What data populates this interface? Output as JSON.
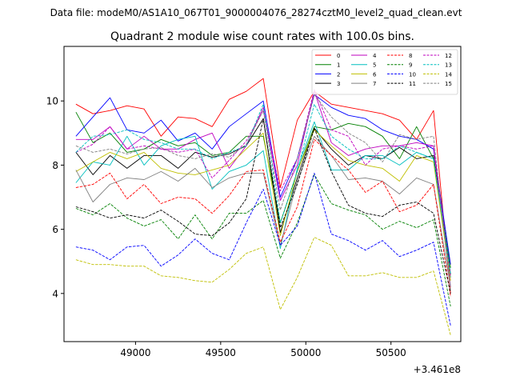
{
  "chart_data": {
    "type": "line",
    "suptitle": "Data file: modeM0/AS1A10_067T01_9000004076_28274cztM0_level2_quad_clean.evt",
    "title": "Quadrant 2 module wise count rates with 100.0s bins.",
    "xlabel": "",
    "ylabel": "",
    "x_offset_label": "+3.461e8",
    "xlim": [
      48580,
      50910
    ],
    "ylim": [
      2.5,
      11.7
    ],
    "xticks": [
      49000,
      49500,
      50000,
      50500
    ],
    "xtick_labels": [
      "49000",
      "49500",
      "50000",
      "50500"
    ],
    "yticks": [
      4,
      6,
      8,
      10
    ],
    "ytick_labels": [
      "4",
      "6",
      "8",
      "10"
    ],
    "legend_position": "top-right",
    "x": [
      48650,
      48750,
      48850,
      48950,
      49050,
      49150,
      49250,
      49350,
      49450,
      49550,
      49650,
      49750,
      49850,
      49950,
      50050,
      50150,
      50250,
      50350,
      50450,
      50550,
      50650,
      50750,
      50850
    ],
    "series": [
      {
        "name": "0",
        "color": "#ff0000",
        "dash": "solid",
        "values": [
          9.9,
          9.6,
          9.7,
          9.85,
          9.75,
          8.9,
          9.5,
          9.45,
          9.2,
          10.05,
          10.3,
          10.7,
          7.3,
          9.4,
          10.3,
          9.9,
          9.8,
          9.7,
          9.6,
          9.4,
          8.8,
          9.7,
          4.0
        ]
      },
      {
        "name": "1",
        "color": "#008000",
        "dash": "solid",
        "values": [
          9.65,
          8.7,
          9.0,
          8.4,
          8.5,
          8.8,
          8.6,
          8.7,
          8.3,
          8.4,
          8.9,
          8.9,
          6.2,
          7.8,
          9.2,
          9.1,
          9.3,
          9.2,
          8.9,
          8.2,
          9.2,
          8.2,
          4.8
        ]
      },
      {
        "name": "2",
        "color": "#0000ff",
        "dash": "solid",
        "values": [
          8.9,
          9.5,
          10.1,
          9.1,
          9.0,
          9.4,
          8.75,
          9.0,
          8.5,
          9.2,
          9.6,
          10.0,
          7.0,
          8.2,
          10.2,
          9.8,
          9.55,
          9.45,
          9.1,
          8.9,
          8.8,
          8.5,
          4.9
        ]
      },
      {
        "name": "3",
        "color": "#000000",
        "dash": "solid",
        "values": [
          8.4,
          7.7,
          8.3,
          7.9,
          8.3,
          8.3,
          7.9,
          8.4,
          8.25,
          8.35,
          8.6,
          9.45,
          5.9,
          7.6,
          9.15,
          8.5,
          8.0,
          8.3,
          8.2,
          8.55,
          8.2,
          8.3,
          4.6
        ]
      },
      {
        "name": "4",
        "color": "#bf00bf",
        "dash": "solid",
        "values": [
          8.8,
          8.8,
          9.2,
          8.5,
          8.9,
          8.5,
          8.5,
          8.8,
          9.0,
          7.9,
          8.6,
          9.8,
          6.9,
          8.0,
          10.3,
          8.7,
          8.3,
          8.5,
          8.6,
          8.6,
          8.7,
          8.6,
          4.2
        ]
      },
      {
        "name": "5",
        "color": "#00bfbf",
        "dash": "solid",
        "values": [
          7.45,
          8.1,
          8.0,
          8.9,
          8.0,
          8.6,
          8.8,
          8.9,
          7.25,
          7.8,
          8.0,
          8.45,
          5.4,
          7.9,
          9.35,
          7.85,
          7.85,
          8.3,
          8.3,
          8.0,
          8.4,
          8.2,
          4.5
        ]
      },
      {
        "name": "6",
        "color": "#bfbf00",
        "dash": "solid",
        "values": [
          7.8,
          8.1,
          8.4,
          8.2,
          8.4,
          7.9,
          7.75,
          7.7,
          7.85,
          8.0,
          8.5,
          9.0,
          5.8,
          7.8,
          9.1,
          8.6,
          8.15,
          8.0,
          7.9,
          7.5,
          8.3,
          8.1,
          4.4
        ]
      },
      {
        "name": "7",
        "color": "#808080",
        "dash": "solid",
        "values": [
          7.85,
          6.85,
          7.4,
          7.6,
          7.55,
          7.8,
          7.5,
          7.9,
          7.3,
          7.6,
          7.75,
          7.75,
          5.5,
          7.5,
          8.9,
          8.3,
          7.55,
          7.6,
          7.5,
          7.1,
          7.6,
          7.4,
          4.2
        ]
      },
      {
        "name": "8",
        "color": "#ff0000",
        "dash": "dashed",
        "values": [
          7.3,
          7.4,
          7.75,
          6.95,
          7.4,
          6.8,
          7.0,
          6.95,
          6.5,
          7.05,
          7.8,
          7.85,
          5.6,
          6.7,
          8.8,
          8.3,
          7.85,
          7.15,
          7.5,
          6.55,
          6.75,
          7.4,
          3.9
        ]
      },
      {
        "name": "9",
        "color": "#008000",
        "dash": "dashed",
        "values": [
          6.65,
          6.45,
          6.8,
          6.35,
          6.1,
          6.3,
          5.7,
          6.45,
          5.7,
          6.5,
          6.5,
          6.9,
          5.1,
          6.2,
          7.7,
          6.8,
          6.6,
          6.45,
          6.0,
          6.25,
          6.05,
          6.3,
          3.6
        ]
      },
      {
        "name": "10",
        "color": "#0000ff",
        "dash": "dashed",
        "values": [
          5.45,
          5.35,
          5.05,
          5.45,
          5.5,
          4.85,
          5.2,
          5.7,
          5.25,
          5.05,
          6.2,
          7.25,
          5.5,
          6.1,
          7.75,
          5.85,
          5.65,
          5.35,
          5.65,
          5.15,
          5.35,
          5.6,
          3.0
        ]
      },
      {
        "name": "11",
        "color": "#000000",
        "dash": "dashed",
        "values": [
          6.7,
          6.55,
          6.35,
          6.45,
          6.35,
          6.6,
          6.25,
          5.85,
          5.8,
          6.2,
          6.95,
          9.45,
          6.05,
          7.4,
          9.15,
          7.8,
          6.75,
          6.5,
          6.4,
          6.75,
          6.85,
          6.5,
          4.0
        ]
      },
      {
        "name": "12",
        "color": "#bf00bf",
        "dash": "dashed",
        "values": [
          8.4,
          8.65,
          9.2,
          8.5,
          8.6,
          8.5,
          8.4,
          8.5,
          7.6,
          8.15,
          8.75,
          9.7,
          7.2,
          8.2,
          10.35,
          9.1,
          8.9,
          8.0,
          8.5,
          8.6,
          8.5,
          8.6,
          4.5
        ]
      },
      {
        "name": "13",
        "color": "#00bfbf",
        "dash": "dashed",
        "values": [
          8.4,
          8.9,
          8.95,
          9.1,
          8.8,
          8.7,
          8.5,
          8.5,
          8.2,
          8.4,
          8.6,
          9.9,
          6.2,
          7.8,
          9.9,
          8.9,
          8.5,
          8.2,
          8.2,
          8.6,
          8.4,
          8.2,
          4.6
        ]
      },
      {
        "name": "14",
        "color": "#bfbf00",
        "dash": "dashed",
        "values": [
          5.05,
          4.9,
          4.9,
          4.85,
          4.85,
          4.55,
          4.5,
          4.4,
          4.35,
          4.75,
          5.25,
          5.45,
          3.5,
          4.5,
          5.75,
          5.5,
          4.55,
          4.55,
          4.65,
          4.5,
          4.5,
          4.7,
          2.7
        ]
      },
      {
        "name": "15",
        "color": "#808080",
        "dash": "dashed",
        "values": [
          8.6,
          8.4,
          8.5,
          8.35,
          8.5,
          8.55,
          8.3,
          8.2,
          8.35,
          8.25,
          8.65,
          9.7,
          6.6,
          8.2,
          10.2,
          9.5,
          9.0,
          8.7,
          8.1,
          8.95,
          8.8,
          8.9,
          4.1
        ]
      }
    ]
  }
}
